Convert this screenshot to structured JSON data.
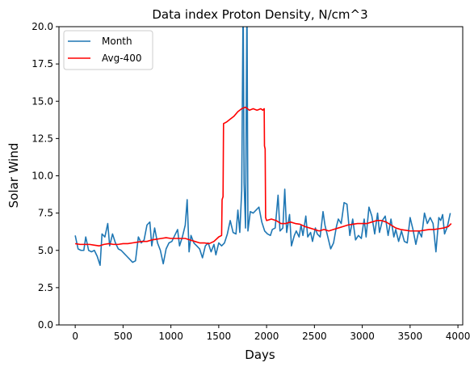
{
  "chart_data": {
    "type": "line",
    "title": "Data index Proton Density, N/cm^3",
    "xlabel": "Days",
    "ylabel": "Solar Wind",
    "xlim": [
      -170,
      4050
    ],
    "ylim": [
      0,
      20
    ],
    "xticks": [
      0,
      500,
      1000,
      1500,
      2000,
      2500,
      3000,
      3500,
      4000
    ],
    "yticks": [
      0.0,
      2.5,
      5.0,
      7.5,
      10.0,
      12.5,
      15.0,
      17.5,
      20.0
    ],
    "xtick_labels": [
      "0",
      "500",
      "1000",
      "1500",
      "2000",
      "2500",
      "3000",
      "3500",
      "4000"
    ],
    "ytick_labels": [
      "0.0",
      "2.5",
      "5.0",
      "7.5",
      "10.0",
      "12.5",
      "15.0",
      "17.5",
      "20.0"
    ],
    "legend_position": "upper-left",
    "series": [
      {
        "name": "Month",
        "color": "#1f77b4",
        "points": [
          [
            0,
            6.0
          ],
          [
            30,
            5.1
          ],
          [
            60,
            5.0
          ],
          [
            90,
            5.0
          ],
          [
            110,
            5.9
          ],
          [
            140,
            5.0
          ],
          [
            170,
            4.9
          ],
          [
            200,
            5.0
          ],
          [
            230,
            4.6
          ],
          [
            260,
            4.0
          ],
          [
            280,
            6.1
          ],
          [
            310,
            5.9
          ],
          [
            340,
            6.8
          ],
          [
            360,
            5.3
          ],
          [
            390,
            6.1
          ],
          [
            420,
            5.5
          ],
          [
            450,
            5.1
          ],
          [
            480,
            5.0
          ],
          [
            510,
            4.8
          ],
          [
            540,
            4.6
          ],
          [
            570,
            4.4
          ],
          [
            600,
            4.2
          ],
          [
            630,
            4.3
          ],
          [
            660,
            5.9
          ],
          [
            690,
            5.5
          ],
          [
            720,
            5.7
          ],
          [
            750,
            6.7
          ],
          [
            780,
            6.9
          ],
          [
            800,
            5.3
          ],
          [
            830,
            6.5
          ],
          [
            860,
            5.5
          ],
          [
            890,
            5.0
          ],
          [
            920,
            4.1
          ],
          [
            950,
            5.1
          ],
          [
            980,
            5.5
          ],
          [
            1010,
            5.6
          ],
          [
            1040,
            6.0
          ],
          [
            1070,
            6.4
          ],
          [
            1090,
            5.3
          ],
          [
            1120,
            5.9
          ],
          [
            1150,
            6.7
          ],
          [
            1170,
            8.4
          ],
          [
            1190,
            4.9
          ],
          [
            1210,
            6.0
          ],
          [
            1240,
            5.5
          ],
          [
            1270,
            5.3
          ],
          [
            1300,
            5.1
          ],
          [
            1330,
            4.5
          ],
          [
            1360,
            5.3
          ],
          [
            1390,
            5.5
          ],
          [
            1420,
            4.9
          ],
          [
            1450,
            5.4
          ],
          [
            1470,
            4.7
          ],
          [
            1500,
            5.5
          ],
          [
            1530,
            5.3
          ],
          [
            1560,
            5.5
          ],
          [
            1590,
            6.1
          ],
          [
            1620,
            7.0
          ],
          [
            1650,
            6.2
          ],
          [
            1680,
            6.1
          ],
          [
            1700,
            7.7
          ],
          [
            1720,
            6.2
          ],
          [
            1740,
            9.0
          ],
          [
            1755,
            22.0
          ],
          [
            1765,
            9.5
          ],
          [
            1780,
            6.5
          ],
          [
            1795,
            22.0
          ],
          [
            1805,
            6.3
          ],
          [
            1830,
            7.6
          ],
          [
            1860,
            7.5
          ],
          [
            1890,
            7.7
          ],
          [
            1920,
            7.9
          ],
          [
            1950,
            6.9
          ],
          [
            1980,
            6.3
          ],
          [
            2010,
            6.1
          ],
          [
            2040,
            6.0
          ],
          [
            2060,
            6.4
          ],
          [
            2090,
            6.5
          ],
          [
            2120,
            8.7
          ],
          [
            2140,
            6.3
          ],
          [
            2170,
            6.5
          ],
          [
            2190,
            9.1
          ],
          [
            2210,
            6.2
          ],
          [
            2240,
            7.4
          ],
          [
            2260,
            5.3
          ],
          [
            2290,
            6.0
          ],
          [
            2310,
            6.3
          ],
          [
            2340,
            5.9
          ],
          [
            2360,
            6.7
          ],
          [
            2380,
            6.0
          ],
          [
            2410,
            7.3
          ],
          [
            2430,
            5.9
          ],
          [
            2460,
            6.2
          ],
          [
            2480,
            5.6
          ],
          [
            2510,
            6.5
          ],
          [
            2530,
            6.1
          ],
          [
            2560,
            5.9
          ],
          [
            2590,
            7.6
          ],
          [
            2610,
            6.7
          ],
          [
            2640,
            5.9
          ],
          [
            2670,
            5.1
          ],
          [
            2700,
            5.5
          ],
          [
            2730,
            6.6
          ],
          [
            2750,
            7.1
          ],
          [
            2780,
            6.8
          ],
          [
            2810,
            8.2
          ],
          [
            2840,
            8.1
          ],
          [
            2870,
            6.0
          ],
          [
            2900,
            7.1
          ],
          [
            2930,
            5.7
          ],
          [
            2960,
            6.0
          ],
          [
            2990,
            5.8
          ],
          [
            3020,
            7.1
          ],
          [
            3040,
            5.9
          ],
          [
            3070,
            7.9
          ],
          [
            3100,
            7.3
          ],
          [
            3130,
            6.1
          ],
          [
            3160,
            7.5
          ],
          [
            3180,
            6.2
          ],
          [
            3210,
            7.0
          ],
          [
            3240,
            7.3
          ],
          [
            3270,
            6.0
          ],
          [
            3300,
            7.1
          ],
          [
            3330,
            5.9
          ],
          [
            3350,
            6.4
          ],
          [
            3380,
            5.6
          ],
          [
            3410,
            6.3
          ],
          [
            3440,
            5.6
          ],
          [
            3470,
            5.5
          ],
          [
            3500,
            7.2
          ],
          [
            3530,
            6.4
          ],
          [
            3560,
            5.4
          ],
          [
            3590,
            6.3
          ],
          [
            3620,
            5.9
          ],
          [
            3650,
            7.5
          ],
          [
            3680,
            6.8
          ],
          [
            3710,
            7.2
          ],
          [
            3740,
            6.8
          ],
          [
            3770,
            4.9
          ],
          [
            3800,
            7.2
          ],
          [
            3820,
            7.0
          ],
          [
            3840,
            7.4
          ],
          [
            3860,
            6.1
          ],
          [
            3890,
            6.6
          ],
          [
            3920,
            7.5
          ]
        ]
      },
      {
        "name": "Avg-400",
        "color": "#ff0000",
        "points": [
          [
            0,
            5.45
          ],
          [
            50,
            5.4
          ],
          [
            100,
            5.4
          ],
          [
            150,
            5.4
          ],
          [
            200,
            5.35
          ],
          [
            250,
            5.3
          ],
          [
            300,
            5.4
          ],
          [
            350,
            5.45
          ],
          [
            400,
            5.4
          ],
          [
            450,
            5.4
          ],
          [
            500,
            5.45
          ],
          [
            550,
            5.45
          ],
          [
            600,
            5.5
          ],
          [
            650,
            5.55
          ],
          [
            700,
            5.6
          ],
          [
            750,
            5.6
          ],
          [
            800,
            5.7
          ],
          [
            850,
            5.75
          ],
          [
            900,
            5.8
          ],
          [
            950,
            5.85
          ],
          [
            1000,
            5.8
          ],
          [
            1050,
            5.8
          ],
          [
            1100,
            5.8
          ],
          [
            1150,
            5.8
          ],
          [
            1200,
            5.7
          ],
          [
            1250,
            5.6
          ],
          [
            1300,
            5.5
          ],
          [
            1350,
            5.5
          ],
          [
            1400,
            5.45
          ],
          [
            1450,
            5.6
          ],
          [
            1500,
            5.9
          ],
          [
            1530,
            6.0
          ],
          [
            1535,
            8.4
          ],
          [
            1545,
            8.6
          ],
          [
            1550,
            13.5
          ],
          [
            1580,
            13.6
          ],
          [
            1620,
            13.8
          ],
          [
            1660,
            14.0
          ],
          [
            1700,
            14.3
          ],
          [
            1740,
            14.5
          ],
          [
            1780,
            14.6
          ],
          [
            1820,
            14.4
          ],
          [
            1860,
            14.5
          ],
          [
            1900,
            14.4
          ],
          [
            1940,
            14.5
          ],
          [
            1960,
            14.4
          ],
          [
            1975,
            14.5
          ],
          [
            1978,
            12.0
          ],
          [
            1985,
            11.8
          ],
          [
            1990,
            7.2
          ],
          [
            2000,
            7.0
          ],
          [
            2050,
            7.1
          ],
          [
            2100,
            7.0
          ],
          [
            2150,
            6.8
          ],
          [
            2200,
            6.8
          ],
          [
            2250,
            6.9
          ],
          [
            2300,
            6.8
          ],
          [
            2350,
            6.75
          ],
          [
            2400,
            6.6
          ],
          [
            2450,
            6.5
          ],
          [
            2500,
            6.4
          ],
          [
            2550,
            6.3
          ],
          [
            2600,
            6.4
          ],
          [
            2650,
            6.3
          ],
          [
            2700,
            6.4
          ],
          [
            2750,
            6.5
          ],
          [
            2800,
            6.6
          ],
          [
            2850,
            6.7
          ],
          [
            2900,
            6.75
          ],
          [
            2950,
            6.8
          ],
          [
            3000,
            6.8
          ],
          [
            3050,
            6.8
          ],
          [
            3100,
            6.9
          ],
          [
            3150,
            7.0
          ],
          [
            3200,
            7.0
          ],
          [
            3250,
            6.9
          ],
          [
            3300,
            6.7
          ],
          [
            3350,
            6.5
          ],
          [
            3400,
            6.4
          ],
          [
            3450,
            6.35
          ],
          [
            3500,
            6.3
          ],
          [
            3550,
            6.3
          ],
          [
            3600,
            6.3
          ],
          [
            3650,
            6.35
          ],
          [
            3700,
            6.4
          ],
          [
            3750,
            6.4
          ],
          [
            3800,
            6.45
          ],
          [
            3850,
            6.5
          ],
          [
            3900,
            6.6
          ],
          [
            3930,
            6.8
          ]
        ]
      }
    ]
  }
}
